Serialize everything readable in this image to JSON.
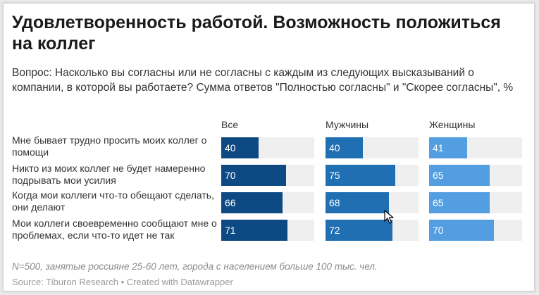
{
  "title": "Удовлетворенность работой. Возможность положиться на коллег",
  "subtitle": "Вопрос: Насколько вы согласны или не согласны с каждым из следующих высказываний о компании, в которой вы работаете? Сумма ответов \"Полностью согласны\" и \"Скорее согласны\", %",
  "chart_data": {
    "type": "bar",
    "categories": [
      "Мне бывает трудно просить моих коллег о помощи",
      "Никто из моих коллег не будет намеренно подрывать мои усилия",
      "Когда мои коллеги что-то обещают сделать, они делают",
      "Мои коллеги своевременно сообщают мне о проблемах, если что-то идет не так"
    ],
    "series": [
      {
        "name": "Все",
        "values": [
          40,
          70,
          66,
          71
        ],
        "color": "#0d4a84"
      },
      {
        "name": "Мужчины",
        "values": [
          40,
          75,
          68,
          72
        ],
        "color": "#1f6fb2"
      },
      {
        "name": "Женщины",
        "values": [
          41,
          65,
          65,
          70
        ],
        "color": "#529ee0"
      }
    ],
    "xlim": [
      0,
      100
    ],
    "grid": false
  },
  "note": "N=500, занятые россияне 25-60 лет, города с населением больше 100 тыс. чел.",
  "source": "Source: Tiburon Research • Created with Datawrapper"
}
